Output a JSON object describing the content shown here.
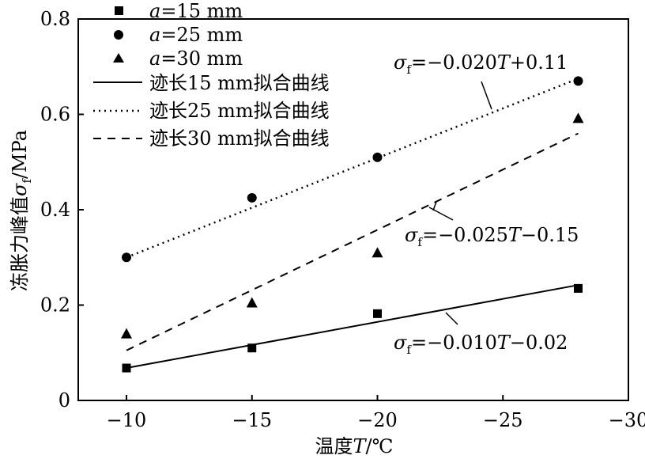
{
  "chart_data": {
    "type": "scatter",
    "xlabel": "温度T/℃",
    "ylabel": "冻胀力峰值σf/MPa",
    "xlim": [
      -8,
      -30
    ],
    "ylim": [
      0,
      0.8
    ],
    "x_ticks": [
      {
        "value": -10,
        "label": "−10"
      },
      {
        "value": -15,
        "label": "−15"
      },
      {
        "value": -20,
        "label": "−20"
      },
      {
        "value": -25,
        "label": "−25"
      },
      {
        "value": -30,
        "label": "−30"
      }
    ],
    "y_ticks": [
      {
        "value": 0,
        "label": "0"
      },
      {
        "value": 0.2,
        "label": "0.2"
      },
      {
        "value": 0.4,
        "label": "0.4"
      },
      {
        "value": 0.6,
        "label": "0.6"
      },
      {
        "value": 0.8,
        "label": "0.8"
      }
    ],
    "series": [
      {
        "name": "a=15 mm",
        "marker": "square",
        "x": [
          -10,
          -15,
          -20,
          -28
        ],
        "y": [
          0.068,
          0.11,
          0.182,
          0.235
        ]
      },
      {
        "name": "a=25 mm",
        "marker": "circle",
        "x": [
          -10,
          -15,
          -20,
          -28
        ],
        "y": [
          0.3,
          0.425,
          0.51,
          0.67
        ]
      },
      {
        "name": "a=30 mm",
        "marker": "triangle",
        "x": [
          -10,
          -15,
          -20,
          -28
        ],
        "y": [
          0.14,
          0.205,
          0.31,
          0.592
        ]
      }
    ],
    "fits": [
      {
        "name": "迹长15 mm拟合曲线",
        "style": "solid",
        "x": [
          -10,
          -28
        ],
        "y": [
          0.068,
          0.242
        ]
      },
      {
        "name": "迹长25 mm拟合曲线",
        "style": "dotted",
        "x": [
          -10,
          -28
        ],
        "y": [
          0.3,
          0.675
        ]
      },
      {
        "name": "迹长30 mm拟合曲线",
        "style": "dashed",
        "x": [
          -10,
          -28
        ],
        "y": [
          0.105,
          0.56
        ]
      }
    ],
    "annotations": [
      {
        "text": "σf=−0.020T+0.11",
        "points_to": "迹长25 mm拟合曲线"
      },
      {
        "text": "σf=−0.025T−0.15",
        "points_to": "迹长30 mm拟合曲线"
      },
      {
        "text": "σf=−0.010T−0.02",
        "points_to": "迹长15 mm拟合曲线"
      }
    ],
    "legend_placement": "top-left",
    "grid": false
  },
  "text": {
    "xlabel_prefix": "温度",
    "xlabel_var": "T",
    "xlabel_suffix": "/℃",
    "ylabel_prefix": "冻胀力峰值",
    "ylabel_var": "σ",
    "ylabel_sub": "f",
    "ylabel_suffix": "/MPa",
    "legend": [
      {
        "var": "a",
        "rest": "=15 mm"
      },
      {
        "var": "a",
        "rest": "=25 mm"
      },
      {
        "var": "a",
        "rest": "=30 mm"
      },
      {
        "label": "迹长15 mm拟合曲线"
      },
      {
        "label": "迹长25 mm拟合曲线"
      },
      {
        "label": "迹长30 mm拟合曲线"
      }
    ],
    "annotations": [
      {
        "sigma": "σ",
        "sub": "f",
        "mid": "=−0.020",
        "var": "T",
        "tail": "+0.11"
      },
      {
        "sigma": "σ",
        "sub": "f",
        "mid": "=−0.025",
        "var": "T",
        "tail": "−0.15"
      },
      {
        "sigma": "σ",
        "sub": "f",
        "mid": "=−0.010",
        "var": "T",
        "tail": "−0.02"
      }
    ]
  }
}
